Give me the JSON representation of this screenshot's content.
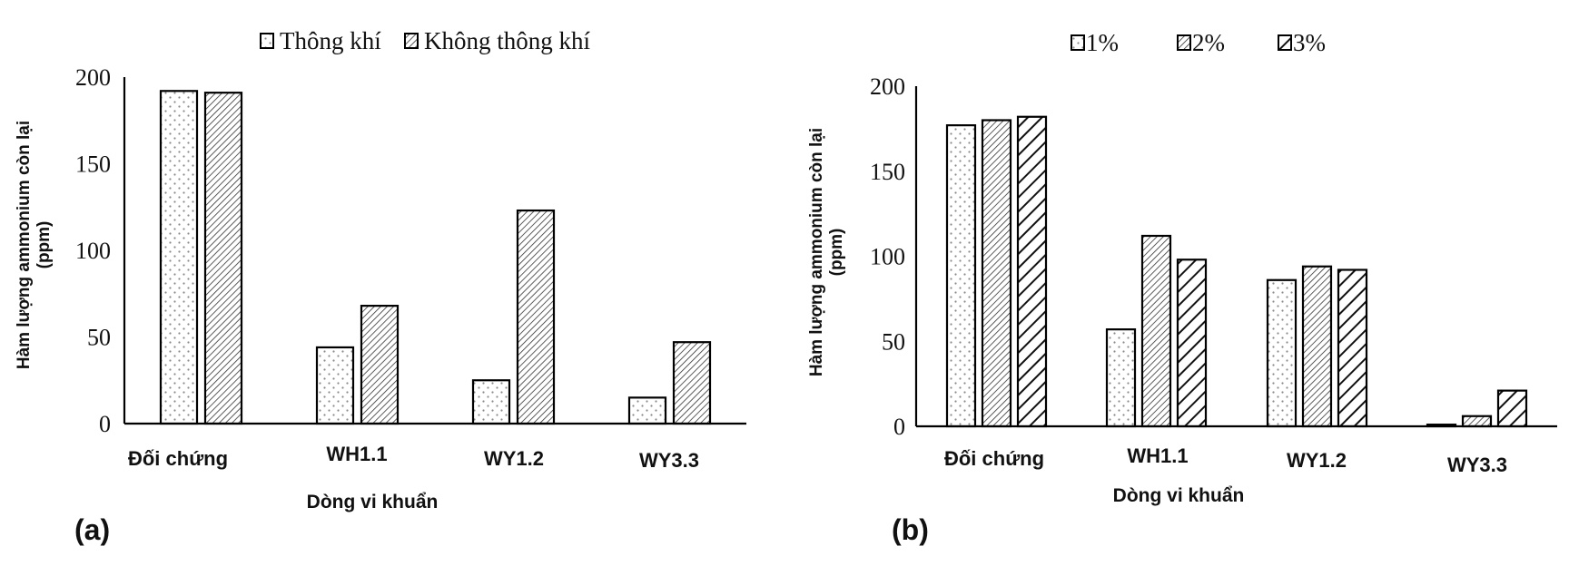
{
  "figure": {
    "panel_labels": [
      "(a)",
      "(b)"
    ]
  },
  "chart_data": [
    {
      "type": "bar",
      "panel": "(a)",
      "title": "",
      "categories": [
        "Đối chứng",
        "WH1.1",
        "WY1.2",
        "WY3.3"
      ],
      "series": [
        {
          "name": "Thông khí",
          "pattern": "dots",
          "values": [
            192,
            44,
            25,
            15
          ]
        },
        {
          "name": "Không thông khí",
          "pattern": "fine-hatch",
          "values": [
            191,
            68,
            123,
            47
          ]
        }
      ],
      "xlabel": "Dòng vi khuẩn",
      "ylabel": "Hàm lượng ammonium còn lại (ppm)",
      "ylim": [
        0,
        200
      ],
      "yticks": [
        0,
        50,
        100,
        150,
        200
      ],
      "grid": false,
      "legend_position": "top"
    },
    {
      "type": "bar",
      "panel": "(b)",
      "title": "",
      "categories": [
        "Đối chứng",
        "WH1.1",
        "WY1.2",
        "WY3.3"
      ],
      "series": [
        {
          "name": "1%",
          "pattern": "dots",
          "values": [
            177,
            57,
            86,
            1
          ]
        },
        {
          "name": "2%",
          "pattern": "fine-hatch",
          "values": [
            180,
            112,
            94,
            6
          ]
        },
        {
          "name": "3%",
          "pattern": "wide-hatch",
          "values": [
            182,
            98,
            92,
            21
          ]
        }
      ],
      "xlabel": "Dòng vi khuẩn",
      "ylabel": "Hàm lượng ammonium còn lại (ppm)",
      "ylim": [
        0,
        200
      ],
      "yticks": [
        0,
        50,
        100,
        150,
        200
      ],
      "grid": false,
      "legend_position": "top"
    }
  ]
}
